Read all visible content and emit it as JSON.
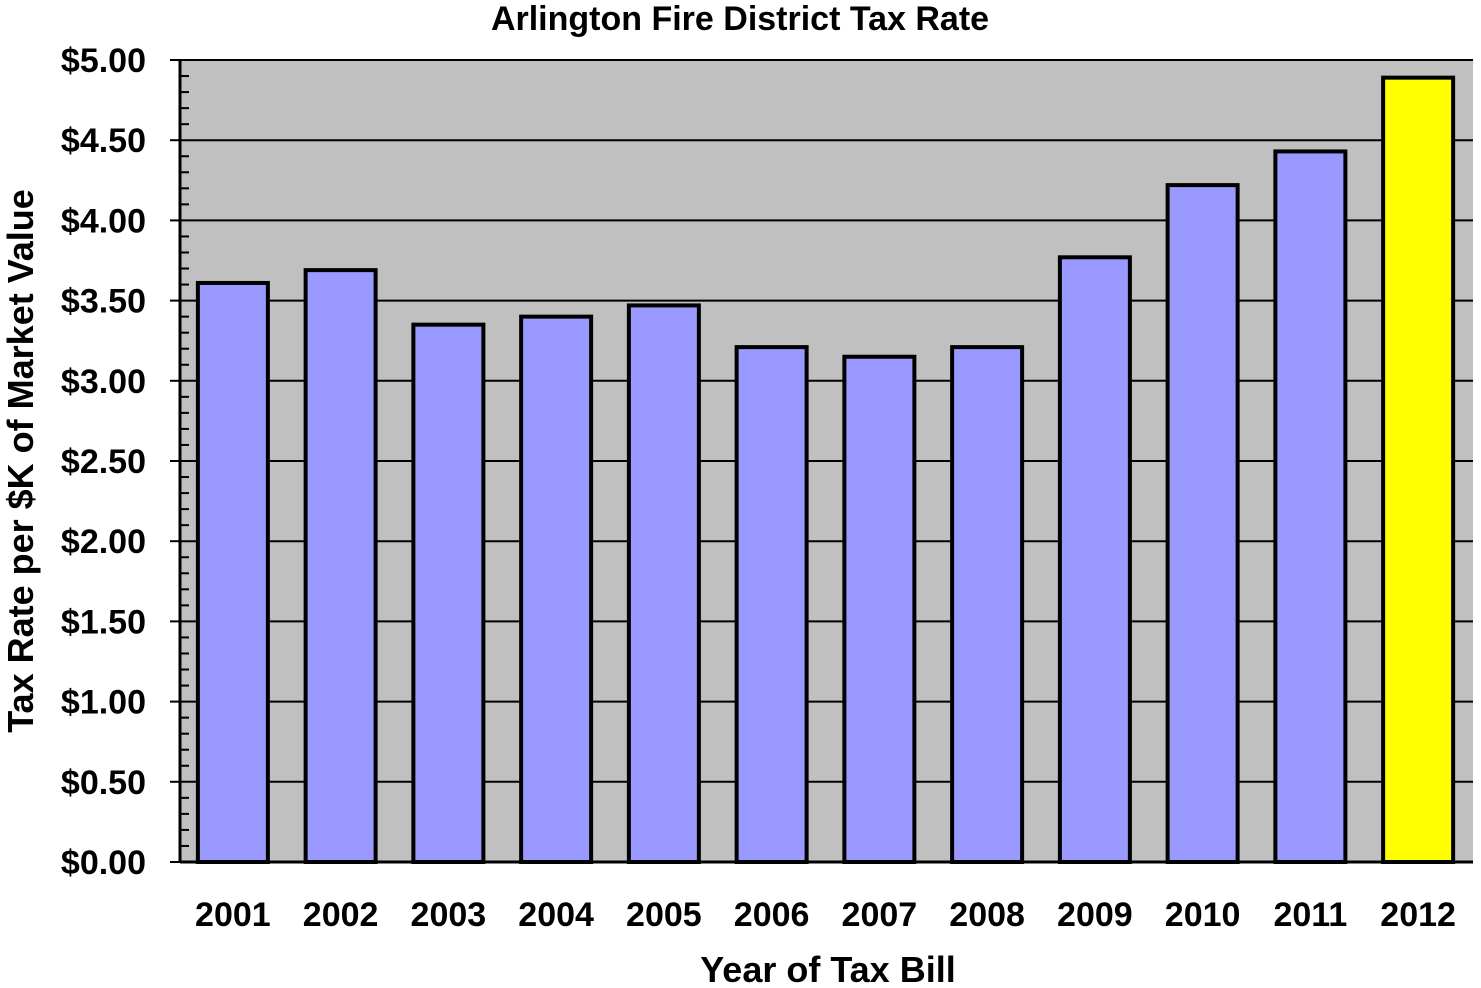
{
  "chart_data": {
    "type": "bar",
    "title": "Arlington Fire District Tax Rate",
    "xlabel": "Year of Tax Bill",
    "ylabel": "Tax Rate per $K of Market Value",
    "categories": [
      "2001",
      "2002",
      "2003",
      "2004",
      "2005",
      "2006",
      "2007",
      "2008",
      "2009",
      "2010",
      "2011",
      "2012"
    ],
    "values": [
      3.61,
      3.69,
      3.35,
      3.4,
      3.47,
      3.21,
      3.15,
      3.21,
      3.77,
      4.22,
      4.43,
      4.89
    ],
    "ylim": [
      0,
      5
    ],
    "yticks": [
      0,
      0.5,
      1,
      1.5,
      2,
      2.5,
      3,
      3.5,
      4,
      4.5,
      5
    ],
    "ytick_labels": [
      "$0.00",
      "$0.50",
      "$1.00",
      "$1.50",
      "$2.00",
      "$2.50",
      "$3.00",
      "$3.50",
      "$4.00",
      "$4.50",
      "$5.00"
    ],
    "grid": true,
    "legend": "none"
  },
  "colors": {
    "plot_background": "#c0c0c0",
    "bar": "#9999ff",
    "highlight_bar": "#ffff00",
    "outline": "#000000"
  },
  "highlight_index": 11
}
